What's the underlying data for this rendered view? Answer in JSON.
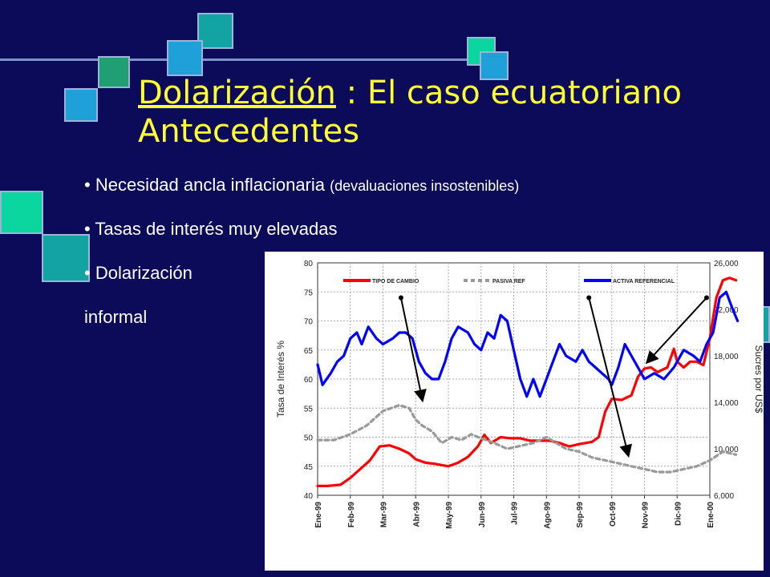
{
  "slide": {
    "title_underlined": "Dolarización",
    "title_rest": " : El caso ecuatoriano",
    "title_line2": "Antecedentes",
    "bullets": [
      {
        "text": "Necesidad ancla inflacionaria",
        "note": "(devaluaciones insostenibles)"
      },
      {
        "text": "Tasas de interés muy elevadas"
      },
      {
        "text": "Dolarización",
        "continuation": "informal"
      }
    ]
  },
  "chart_data": {
    "type": "line",
    "title": "",
    "ylabel": "Tasa de Interés %",
    "y2label": "Sucres por US$",
    "ylim": [
      40,
      80
    ],
    "y2lim": [
      6000,
      26000
    ],
    "yticks": [
      "40",
      "45",
      "50",
      "55",
      "60",
      "65",
      "70",
      "75",
      "80"
    ],
    "y2ticks": [
      "6,000",
      "10,000",
      "14,000",
      "18,000",
      "22,000",
      "26,000"
    ],
    "categories": [
      "Ene-99",
      "Feb-99",
      "Mar-99",
      "Abr-99",
      "May-99",
      "Jun-99",
      "Jul-99",
      "Ago-99",
      "Sep-99",
      "Oct-99",
      "Nov-99",
      "Dic-99",
      "Ene-00"
    ],
    "grid": true,
    "legend_position": "top",
    "series": [
      {
        "name": "TIPO DE CAMBIO",
        "axis": "right",
        "color": "#ff0000",
        "dash": "",
        "values": [
          [
            0,
            6800
          ],
          [
            0.3,
            6800
          ],
          [
            0.7,
            6900
          ],
          [
            1.0,
            7500
          ],
          [
            1.4,
            8500
          ],
          [
            1.6,
            9000
          ],
          [
            1.9,
            10200
          ],
          [
            2.2,
            10300
          ],
          [
            2.5,
            10000
          ],
          [
            2.8,
            9600
          ],
          [
            3.0,
            9100
          ],
          [
            3.3,
            8800
          ],
          [
            3.6,
            8700
          ],
          [
            4.0,
            8500
          ],
          [
            4.3,
            8800
          ],
          [
            4.6,
            9300
          ],
          [
            4.9,
            10200
          ],
          [
            5.1,
            11200
          ],
          [
            5.3,
            10500
          ],
          [
            5.6,
            11000
          ],
          [
            5.9,
            10900
          ],
          [
            6.2,
            10900
          ],
          [
            6.5,
            10700
          ],
          [
            6.8,
            10700
          ],
          [
            7.1,
            10700
          ],
          [
            7.4,
            10500
          ],
          [
            7.7,
            10200
          ],
          [
            8.0,
            10400
          ],
          [
            8.2,
            10500
          ],
          [
            8.4,
            10600
          ],
          [
            8.6,
            11000
          ],
          [
            8.8,
            13200
          ],
          [
            9.0,
            14300
          ],
          [
            9.3,
            14200
          ],
          [
            9.6,
            14600
          ],
          [
            9.8,
            16200
          ],
          [
            10.0,
            16900
          ],
          [
            10.2,
            17000
          ],
          [
            10.4,
            16600
          ],
          [
            10.7,
            17000
          ],
          [
            10.9,
            18600
          ],
          [
            11.0,
            17500
          ],
          [
            11.2,
            17000
          ],
          [
            11.4,
            17500
          ],
          [
            11.6,
            17500
          ],
          [
            11.8,
            17200
          ],
          [
            12.0,
            19500
          ],
          [
            12.2,
            23000
          ],
          [
            12.4,
            24500
          ],
          [
            12.6,
            24700
          ],
          [
            12.8,
            24500
          ]
        ]
      },
      {
        "name": "PASIVA REF",
        "axis": "left",
        "color": "#999999",
        "dash": "5,4",
        "values": [
          [
            0,
            49.5
          ],
          [
            0.5,
            49.5
          ],
          [
            1.0,
            50.5
          ],
          [
            1.5,
            52
          ],
          [
            2.0,
            54.5
          ],
          [
            2.5,
            55.5
          ],
          [
            2.8,
            55
          ],
          [
            3.0,
            53
          ],
          [
            3.2,
            52
          ],
          [
            3.5,
            51
          ],
          [
            3.8,
            49
          ],
          [
            4.1,
            50
          ],
          [
            4.4,
            49.5
          ],
          [
            4.7,
            50.5
          ],
          [
            5.0,
            49.8
          ],
          [
            5.4,
            49
          ],
          [
            5.8,
            48
          ],
          [
            6.2,
            48.5
          ],
          [
            6.6,
            49
          ],
          [
            7.0,
            50
          ],
          [
            7.3,
            49
          ],
          [
            7.6,
            48
          ],
          [
            8.0,
            47.5
          ],
          [
            8.4,
            46.5
          ],
          [
            8.8,
            46
          ],
          [
            9.2,
            45.5
          ],
          [
            9.6,
            45
          ],
          [
            10.0,
            44.5
          ],
          [
            10.4,
            44
          ],
          [
            10.8,
            44
          ],
          [
            11.2,
            44.5
          ],
          [
            11.6,
            45
          ],
          [
            12.0,
            46
          ],
          [
            12.4,
            47.5
          ],
          [
            12.8,
            47
          ]
        ]
      },
      {
        "name": "ACTIVA REFERENCIAL",
        "axis": "left",
        "color": "#0000ff",
        "dash": "",
        "values": [
          [
            0,
            62.5
          ],
          [
            0.15,
            59
          ],
          [
            0.4,
            61
          ],
          [
            0.6,
            63
          ],
          [
            0.8,
            64
          ],
          [
            1.0,
            67
          ],
          [
            1.2,
            68
          ],
          [
            1.35,
            66
          ],
          [
            1.55,
            69
          ],
          [
            1.8,
            67
          ],
          [
            2.0,
            66
          ],
          [
            2.3,
            67
          ],
          [
            2.5,
            68
          ],
          [
            2.7,
            68
          ],
          [
            2.9,
            67
          ],
          [
            3.1,
            63
          ],
          [
            3.3,
            61
          ],
          [
            3.5,
            60
          ],
          [
            3.7,
            60
          ],
          [
            3.9,
            63
          ],
          [
            4.1,
            67
          ],
          [
            4.3,
            69
          ],
          [
            4.6,
            68
          ],
          [
            4.8,
            66
          ],
          [
            5.0,
            65
          ],
          [
            5.2,
            68
          ],
          [
            5.4,
            67
          ],
          [
            5.6,
            71
          ],
          [
            5.8,
            70
          ],
          [
            6.0,
            65
          ],
          [
            6.2,
            60
          ],
          [
            6.4,
            57
          ],
          [
            6.6,
            60
          ],
          [
            6.8,
            57
          ],
          [
            7.0,
            60
          ],
          [
            7.2,
            63
          ],
          [
            7.4,
            66
          ],
          [
            7.6,
            64
          ],
          [
            7.9,
            63
          ],
          [
            8.1,
            65
          ],
          [
            8.3,
            63
          ],
          [
            8.5,
            62
          ],
          [
            8.7,
            61
          ],
          [
            8.9,
            60
          ],
          [
            9.0,
            59
          ],
          [
            9.2,
            62
          ],
          [
            9.4,
            66
          ],
          [
            9.6,
            64
          ],
          [
            9.8,
            62
          ],
          [
            10.0,
            60
          ],
          [
            10.3,
            61
          ],
          [
            10.6,
            60
          ],
          [
            10.9,
            62
          ],
          [
            11.2,
            65
          ],
          [
            11.5,
            64
          ],
          [
            11.7,
            63
          ],
          [
            11.9,
            66
          ],
          [
            12.1,
            68
          ],
          [
            12.3,
            74
          ],
          [
            12.5,
            75
          ],
          [
            12.7,
            72
          ],
          [
            12.85,
            70
          ]
        ]
      }
    ],
    "annotations": [
      {
        "from_x": 2.55,
        "from_y": 74,
        "to_x": 3.2,
        "to_y": 56.5
      },
      {
        "from_x": 8.3,
        "from_y": 74,
        "to_x": 9.5,
        "to_y": 47
      },
      {
        "from_x": 11.9,
        "from_y": 74,
        "to_x": 10.1,
        "to_y": 63
      }
    ]
  }
}
